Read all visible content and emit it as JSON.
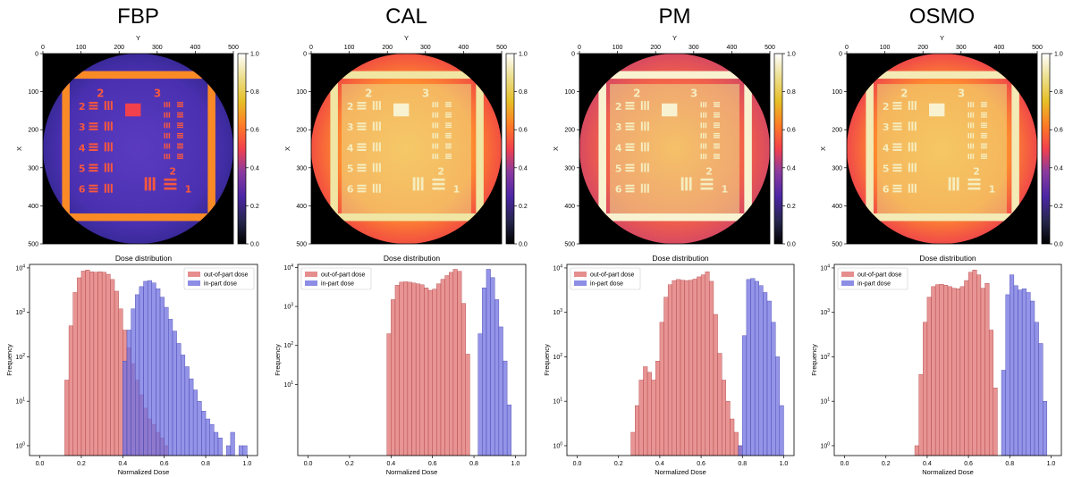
{
  "chart_data": [
    {
      "type": "heatmap",
      "panel_title": "FBP",
      "xlabel": "Y",
      "ylabel": "X",
      "x_ticks": [
        0,
        100,
        200,
        300,
        400,
        500
      ],
      "y_ticks": [
        0,
        100,
        200,
        300,
        400,
        500
      ],
      "colorbar_ticks": [
        "0.0",
        "0.2",
        "0.4",
        "0.6",
        "0.8",
        "1.0"
      ],
      "colormap": "CMRmap",
      "background_level": 0.3,
      "part_level": 0.55,
      "frame_level": 0.65
    },
    {
      "type": "heatmap",
      "panel_title": "CAL",
      "xlabel": "Y",
      "ylabel": "X",
      "x_ticks": [
        0,
        100,
        200,
        300,
        400,
        500
      ],
      "y_ticks": [
        0,
        100,
        200,
        300,
        400,
        500
      ],
      "colorbar_ticks": [
        "0.0",
        "0.2",
        "0.4",
        "0.6",
        "0.8",
        "1.0"
      ],
      "colormap": "CMRmap",
      "background_level": 0.6,
      "part_level": 0.87,
      "frame_level": 0.9
    },
    {
      "type": "heatmap",
      "panel_title": "PM",
      "xlabel": "Y",
      "ylabel": "X",
      "x_ticks": [
        0,
        100,
        200,
        300,
        400,
        500
      ],
      "y_ticks": [
        0,
        100,
        200,
        300,
        400,
        500
      ],
      "colorbar_ticks": [
        "0.0",
        "0.2",
        "0.4",
        "0.6",
        "0.8",
        "1.0"
      ],
      "colormap": "CMRmap",
      "background_level": 0.55,
      "part_level": 0.88,
      "frame_level": 0.95
    },
    {
      "type": "heatmap",
      "panel_title": "OSMO",
      "xlabel": "Y",
      "ylabel": "X",
      "x_ticks": [
        0,
        100,
        200,
        300,
        400,
        500
      ],
      "y_ticks": [
        0,
        100,
        200,
        300,
        400,
        500
      ],
      "colorbar_ticks": [
        "0.0",
        "0.2",
        "0.4",
        "0.6",
        "0.8",
        "1.0"
      ],
      "colormap": "CMRmap",
      "background_level": 0.6,
      "part_level": 0.86,
      "frame_level": 0.92
    },
    {
      "type": "bar",
      "title": "Dose distribution",
      "xlabel": "Normalized Dose",
      "ylabel": "Frequency",
      "xlim": [
        0,
        1
      ],
      "ylog": true,
      "ylim": [
        0.6,
        12000
      ],
      "x_ticks": [
        "0.0",
        "0.2",
        "0.4",
        "0.6",
        "0.8",
        "1.0"
      ],
      "y_ticks": [
        {
          "label": "10",
          "exp": "0",
          "value": 1
        },
        {
          "label": "10",
          "exp": "1",
          "value": 10
        },
        {
          "label": "10",
          "exp": "2",
          "value": 100
        },
        {
          "label": "10",
          "exp": "3",
          "value": 1000
        },
        {
          "label": "10",
          "exp": "4",
          "value": 10000
        }
      ],
      "legend_position": "top-right",
      "series": [
        {
          "name": "out-of-part dose",
          "color": "#e07070",
          "bins": [
            [
              0.13,
              30
            ],
            [
              0.15,
              500
            ],
            [
              0.17,
              2800
            ],
            [
              0.19,
              6000
            ],
            [
              0.21,
              8500
            ],
            [
              0.23,
              9000
            ],
            [
              0.25,
              8200
            ],
            [
              0.27,
              8000
            ],
            [
              0.29,
              8200
            ],
            [
              0.31,
              8000
            ],
            [
              0.33,
              7200
            ],
            [
              0.35,
              5500
            ],
            [
              0.37,
              3000
            ],
            [
              0.39,
              1200
            ],
            [
              0.41,
              400
            ],
            [
              0.43,
              160
            ],
            [
              0.45,
              70
            ],
            [
              0.47,
              30
            ],
            [
              0.49,
              14
            ],
            [
              0.51,
              7
            ],
            [
              0.53,
              4
            ],
            [
              0.55,
              3
            ],
            [
              0.57,
              2
            ],
            [
              0.59,
              1.5
            ],
            [
              0.61,
              1
            ]
          ]
        },
        {
          "name": "in-part dose",
          "color": "#7070e0",
          "bins": [
            [
              0.41,
              80
            ],
            [
              0.43,
              400
            ],
            [
              0.45,
              1200
            ],
            [
              0.47,
              2500
            ],
            [
              0.49,
              3800
            ],
            [
              0.51,
              5000
            ],
            [
              0.53,
              5200
            ],
            [
              0.55,
              4600
            ],
            [
              0.57,
              3400
            ],
            [
              0.59,
              2200
            ],
            [
              0.61,
              1300
            ],
            [
              0.63,
              700
            ],
            [
              0.65,
              380
            ],
            [
              0.67,
              200
            ],
            [
              0.69,
              110
            ],
            [
              0.71,
              60
            ],
            [
              0.73,
              32
            ],
            [
              0.75,
              18
            ],
            [
              0.77,
              10
            ],
            [
              0.79,
              6
            ],
            [
              0.81,
              4
            ],
            [
              0.83,
              3
            ],
            [
              0.85,
              2
            ],
            [
              0.87,
              1.5
            ],
            [
              0.91,
              1
            ],
            [
              0.93,
              2
            ],
            [
              0.97,
              1
            ],
            [
              0.99,
              1
            ]
          ]
        }
      ]
    },
    {
      "type": "bar",
      "title": "Dose distribution",
      "xlabel": "Normalized Dose",
      "ylabel": "Frequency",
      "xlim": [
        0,
        1
      ],
      "ylog": true,
      "ylim": [
        0.15,
        12000
      ],
      "x_ticks": [
        "0.0",
        "0.2",
        "0.4",
        "0.6",
        "0.8",
        "1.0"
      ],
      "y_ticks": [
        {
          "label": "10",
          "exp": "1",
          "value": 10
        },
        {
          "label": "10",
          "exp": "2",
          "value": 100
        },
        {
          "label": "10",
          "exp": "3",
          "value": 1000
        },
        {
          "label": "10",
          "exp": "4",
          "value": 10000
        }
      ],
      "legend_position": "top-left",
      "series": [
        {
          "name": "out-of-part dose",
          "color": "#e07070",
          "bins": [
            [
              0.39,
              200
            ],
            [
              0.41,
              1500
            ],
            [
              0.43,
              3500
            ],
            [
              0.45,
              4200
            ],
            [
              0.47,
              4300
            ],
            [
              0.49,
              4200
            ],
            [
              0.51,
              4000
            ],
            [
              0.53,
              3800
            ],
            [
              0.55,
              3600
            ],
            [
              0.57,
              3000
            ],
            [
              0.59,
              2600
            ],
            [
              0.61,
              2800
            ],
            [
              0.63,
              3800
            ],
            [
              0.65,
              5000
            ],
            [
              0.67,
              6200
            ],
            [
              0.69,
              7500
            ],
            [
              0.71,
              9000
            ],
            [
              0.73,
              8000
            ],
            [
              0.75,
              1200
            ],
            [
              0.77,
              60
            ]
          ]
        },
        {
          "name": "in-part dose",
          "color": "#7070e0",
          "bins": [
            [
              0.83,
              200
            ],
            [
              0.85,
              3000
            ],
            [
              0.87,
              9000
            ],
            [
              0.89,
              5500
            ],
            [
              0.91,
              1500
            ],
            [
              0.93,
              300
            ],
            [
              0.95,
              40
            ],
            [
              0.97,
              3
            ]
          ]
        }
      ]
    },
    {
      "type": "bar",
      "title": "Dose distribution",
      "xlabel": "Normalized Dose",
      "ylabel": "Frequency",
      "xlim": [
        0,
        1
      ],
      "ylog": true,
      "ylim": [
        0.6,
        12000
      ],
      "x_ticks": [
        "0.0",
        "0.2",
        "0.4",
        "0.6",
        "0.8",
        "1.0"
      ],
      "y_ticks": [
        {
          "label": "10",
          "exp": "0",
          "value": 1
        },
        {
          "label": "10",
          "exp": "1",
          "value": 10
        },
        {
          "label": "10",
          "exp": "2",
          "value": 100
        },
        {
          "label": "10",
          "exp": "3",
          "value": 1000
        },
        {
          "label": "10",
          "exp": "4",
          "value": 10000
        }
      ],
      "legend_position": "top-left",
      "series": [
        {
          "name": "out-of-part dose",
          "color": "#e07070",
          "bins": [
            [
              0.27,
              2
            ],
            [
              0.29,
              8
            ],
            [
              0.31,
              30
            ],
            [
              0.33,
              60
            ],
            [
              0.35,
              45
            ],
            [
              0.37,
              30
            ],
            [
              0.39,
              80
            ],
            [
              0.41,
              600
            ],
            [
              0.43,
              2200
            ],
            [
              0.45,
              4200
            ],
            [
              0.47,
              5200
            ],
            [
              0.49,
              5500
            ],
            [
              0.51,
              5300
            ],
            [
              0.53,
              5200
            ],
            [
              0.55,
              5300
            ],
            [
              0.57,
              5600
            ],
            [
              0.59,
              6300
            ],
            [
              0.61,
              7000
            ],
            [
              0.63,
              8200
            ],
            [
              0.65,
              5000
            ],
            [
              0.67,
              900
            ],
            [
              0.69,
              120
            ],
            [
              0.71,
              30
            ],
            [
              0.73,
              10
            ],
            [
              0.75,
              4
            ],
            [
              0.77,
              2
            ],
            [
              0.79,
              1
            ]
          ]
        },
        {
          "name": "in-part dose",
          "color": "#7070e0",
          "bins": [
            [
              0.79,
              1
            ],
            [
              0.81,
              300
            ],
            [
              0.83,
              5500
            ],
            [
              0.85,
              5800
            ],
            [
              0.87,
              5000
            ],
            [
              0.89,
              4000
            ],
            [
              0.91,
              2800
            ],
            [
              0.93,
              1800
            ],
            [
              0.95,
              600
            ],
            [
              0.97,
              100
            ],
            [
              0.99,
              8
            ]
          ]
        }
      ]
    },
    {
      "type": "bar",
      "title": "Dose distribution",
      "xlabel": "Normalized Dose",
      "ylabel": "Frequency",
      "xlim": [
        0,
        1
      ],
      "ylog": true,
      "ylim": [
        0.6,
        12000
      ],
      "x_ticks": [
        "0.0",
        "0.2",
        "0.4",
        "0.6",
        "0.8",
        "1.0"
      ],
      "y_ticks": [
        {
          "label": "10",
          "exp": "0",
          "value": 1
        },
        {
          "label": "10",
          "exp": "1",
          "value": 10
        },
        {
          "label": "10",
          "exp": "2",
          "value": 100
        },
        {
          "label": "10",
          "exp": "3",
          "value": 1000
        },
        {
          "label": "10",
          "exp": "4",
          "value": 10000
        }
      ],
      "legend_position": "top-left",
      "series": [
        {
          "name": "out-of-part dose",
          "color": "#e07070",
          "bins": [
            [
              0.35,
              1
            ],
            [
              0.37,
              40
            ],
            [
              0.39,
              600
            ],
            [
              0.41,
              2200
            ],
            [
              0.43,
              3800
            ],
            [
              0.45,
              4200
            ],
            [
              0.47,
              4300
            ],
            [
              0.49,
              4100
            ],
            [
              0.51,
              3800
            ],
            [
              0.53,
              3500
            ],
            [
              0.55,
              3400
            ],
            [
              0.57,
              3800
            ],
            [
              0.59,
              5200
            ],
            [
              0.61,
              8000
            ],
            [
              0.63,
              9000
            ],
            [
              0.65,
              7000
            ],
            [
              0.67,
              3500
            ],
            [
              0.69,
              4500
            ],
            [
              0.71,
              400
            ],
            [
              0.73,
              20
            ]
          ]
        },
        {
          "name": "in-part dose",
          "color": "#7070e0",
          "bins": [
            [
              0.77,
              50
            ],
            [
              0.79,
              2500
            ],
            [
              0.81,
              7000
            ],
            [
              0.83,
              4000
            ],
            [
              0.85,
              3200
            ],
            [
              0.87,
              3400
            ],
            [
              0.89,
              2800
            ],
            [
              0.91,
              1800
            ],
            [
              0.93,
              600
            ],
            [
              0.95,
              200
            ],
            [
              0.97,
              10
            ]
          ]
        }
      ]
    }
  ],
  "target_labels": {
    "group2": "2",
    "group3": "3",
    "e2": "2",
    "e3": "3",
    "e4": "4",
    "e5": "5",
    "e6": "6",
    "right2": "2",
    "right1": "1"
  }
}
